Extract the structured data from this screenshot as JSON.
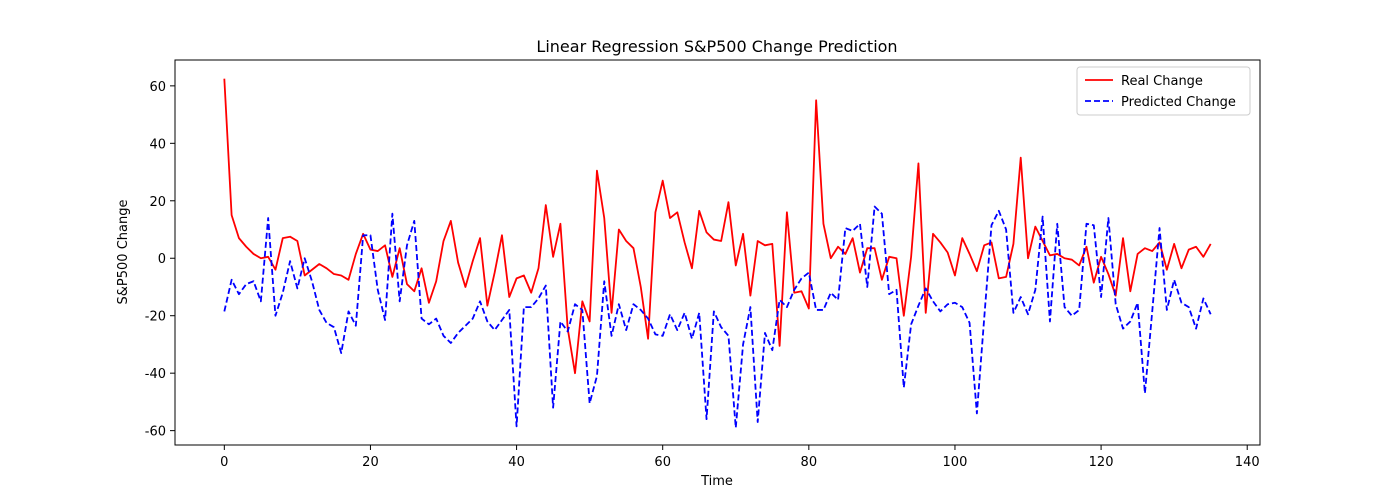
{
  "chart_data": {
    "type": "line",
    "title": "Linear Regression S&P500 Change Prediction",
    "xlabel": "Time",
    "ylabel": "S&P500 Change",
    "xlim": [
      -6.75,
      141.75
    ],
    "ylim": [
      -65,
      69
    ],
    "x_ticks": [
      0,
      20,
      40,
      60,
      80,
      100,
      120,
      140
    ],
    "y_ticks": [
      -60,
      -40,
      -20,
      0,
      20,
      40,
      60
    ],
    "grid": false,
    "legend_position": "top-right",
    "series": [
      {
        "name": "Real Change",
        "color": "#ff0000",
        "dash": "solid",
        "values": [
          62.5,
          15,
          7,
          4,
          1.5,
          0,
          0.5,
          -4,
          7,
          7.5,
          6,
          -6,
          -4,
          -2,
          -3.5,
          -5.5,
          -6,
          -7.5,
          1.5,
          8.5,
          3,
          2.5,
          4.5,
          -6.5,
          3.5,
          -9,
          -11.5,
          -3.5,
          -15.5,
          -8,
          6,
          13,
          -1.5,
          -10,
          -1,
          7,
          -16.5,
          -5,
          8,
          -13.5,
          -7,
          -6,
          -12,
          -3.5,
          18.5,
          0.5,
          12,
          -24.5,
          -40,
          -15,
          -22,
          30.5,
          14,
          -19,
          10,
          6,
          3.5,
          -10,
          -28,
          16,
          27,
          14,
          16,
          5.5,
          -3.5,
          16.5,
          9,
          6.5,
          6,
          19.5,
          -2.5,
          8.5,
          -13,
          6,
          4.5,
          5,
          -30.5,
          16,
          -12,
          -11.5,
          -17.5,
          55,
          12,
          0,
          4,
          1.5,
          7,
          -5,
          3.5,
          3.5,
          -7.5,
          0.5,
          0,
          -20,
          0.5,
          33,
          -19,
          8.5,
          5.5,
          2,
          -6,
          7,
          1.5,
          -4.5,
          4.5,
          5.5,
          -7,
          -6.5,
          5,
          35,
          0,
          11,
          6,
          1,
          1.5,
          0,
          -0.5,
          -2.5,
          4,
          -8.5,
          0.5,
          -5.5,
          -13,
          7,
          -11.5,
          1.5,
          3.5,
          2.5,
          5.5,
          -4,
          5,
          -3.5,
          3,
          4,
          0.5,
          5
        ]
      },
      {
        "name": "Predicted Change",
        "color": "#0000ff",
        "dash": "dashed",
        "values": [
          -18.5,
          -7.5,
          -12.5,
          -9,
          -8,
          -15,
          14,
          -20,
          -12,
          -1,
          -10.5,
          0,
          -8,
          -18,
          -22.5,
          -24,
          -33,
          -18.5,
          -23.5,
          8,
          8,
          -11,
          -21.5,
          15.5,
          -15,
          4.5,
          13,
          -21,
          -23,
          -21,
          -27,
          -29.5,
          -26,
          -23.5,
          -21,
          -15,
          -22,
          -25,
          -21.5,
          -18,
          -58.5,
          -17,
          -17,
          -14,
          -9.5,
          -52,
          -22,
          -25.5,
          -16,
          -18,
          -50.5,
          -41,
          -8,
          -27,
          -16,
          -25,
          -16,
          -18,
          -21,
          -26.5,
          -27,
          -19.5,
          -25,
          -19,
          -28,
          -19,
          -56,
          -18.5,
          -24,
          -27,
          -59,
          -30,
          -17,
          -57,
          -26,
          -32,
          -14.5,
          -17,
          -11,
          -7,
          -5,
          -18,
          -18,
          -12,
          -14.5,
          10.5,
          9.5,
          12,
          -10,
          18,
          15.5,
          -12.5,
          -11,
          -45,
          -23,
          -16.5,
          -10.5,
          -15,
          -18.5,
          -16,
          -15.5,
          -17,
          -22.5,
          -54,
          -21,
          11.5,
          16.5,
          10,
          -19,
          -13.5,
          -19.5,
          -11,
          14.5,
          -22,
          12,
          -17,
          -20,
          -18,
          12,
          11.5,
          -13.5,
          14,
          -16,
          -24.5,
          -22,
          -15.5,
          -47,
          -18.5,
          10.5,
          -18,
          -7.5,
          -15.5,
          -17,
          -24.5,
          -14,
          -19.5
        ]
      }
    ]
  }
}
